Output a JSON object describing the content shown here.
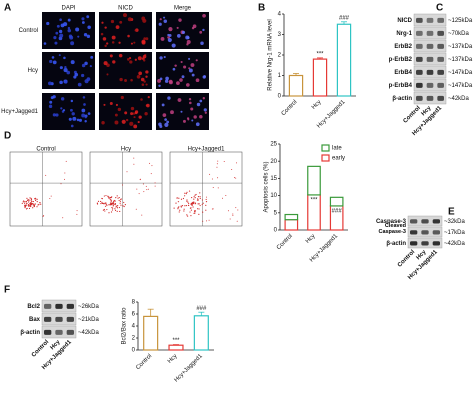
{
  "figure": {
    "panel_labels": [
      "A",
      "B",
      "C",
      "D",
      "E",
      "F"
    ],
    "a": {
      "columns": [
        "DAPI",
        "NICD",
        "Merge"
      ],
      "rows": [
        "Control",
        "Hcy",
        "Hcy+Jagged1"
      ]
    },
    "c": {
      "bands": [
        {
          "name": "NICD",
          "size": "~125kDa"
        },
        {
          "name": "Nrg-1",
          "size": "~70kDa"
        },
        {
          "name": "ErbB2",
          "size": "~137kDa"
        },
        {
          "name": "p-ErbB2",
          "size": "~137kDa"
        },
        {
          "name": "ErbB4",
          "size": "~147kDa"
        },
        {
          "name": "p-ErbB4",
          "size": "~147kDa"
        },
        {
          "name": "β-actin",
          "size": "~42kDa"
        }
      ],
      "lanes": [
        "Control",
        "Hcy",
        "Hcy+Jagged1"
      ]
    },
    "d": {
      "plots": [
        "Control",
        "Hcy",
        "Hcy+Jagged1"
      ]
    },
    "e": {
      "bands": [
        {
          "name": "Caspase-3",
          "size": "~32kDa"
        },
        {
          "name": "Cleaved Caspase-3",
          "size": "~17kDa"
        },
        {
          "name": "β-actin",
          "size": "~42kDa"
        }
      ],
      "lanes": [
        "Control",
        "Hcy",
        "Hcy+Jagged1"
      ]
    },
    "f": {
      "bands": [
        {
          "name": "Bcl2",
          "size": "~26kDa"
        },
        {
          "name": "Bax",
          "size": "~21kDa"
        },
        {
          "name": "β-actin",
          "size": "~42kDa"
        }
      ],
      "lanes": [
        "Control",
        "Hcy",
        "Hcy+Jagged1"
      ]
    }
  },
  "chart_data": [
    {
      "type": "bar",
      "ylabel": "Relative Nrg-1 mRNA level",
      "categories": [
        "Control",
        "Hcy",
        "Hcy+Jagged1"
      ],
      "values": [
        1.0,
        1.8,
        3.5
      ],
      "errors": [
        0.1,
        0.06,
        0.12
      ],
      "colors": [
        "#c8943c",
        "#e53935",
        "#2ec4c4"
      ],
      "annotations": [
        null,
        "***",
        "###"
      ],
      "ylim": [
        0,
        4
      ],
      "yticks": [
        0,
        1,
        2,
        3,
        4
      ]
    },
    {
      "type": "stacked_bar",
      "ylabel": "Apoptosis cells (%)",
      "categories": [
        "Control",
        "Hcy",
        "Hcy+Jagged1"
      ],
      "series": [
        {
          "name": "early",
          "color": "#e53935",
          "values": [
            3,
            10.2,
            7
          ]
        },
        {
          "name": "late",
          "color": "#3a9a3a",
          "values": [
            1.5,
            8.3,
            2.5
          ]
        }
      ],
      "annotations": [
        null,
        "***",
        "###"
      ],
      "ylim": [
        0,
        25
      ],
      "yticks": [
        0,
        5,
        10,
        15,
        20,
        25
      ]
    },
    {
      "type": "bar",
      "ylabel": "Bcl2/Bax ratio",
      "categories": [
        "Control",
        "Hcy",
        "Hcy+Jagged1"
      ],
      "values": [
        5.6,
        0.8,
        5.7
      ],
      "errors": [
        1.2,
        0.1,
        0.6
      ],
      "colors": [
        "#c8943c",
        "#e53935",
        "#2ec4c4"
      ],
      "annotations": [
        null,
        "***",
        "###"
      ],
      "ylim": [
        0,
        8
      ],
      "yticks": [
        0,
        2,
        4,
        6,
        8
      ]
    }
  ]
}
